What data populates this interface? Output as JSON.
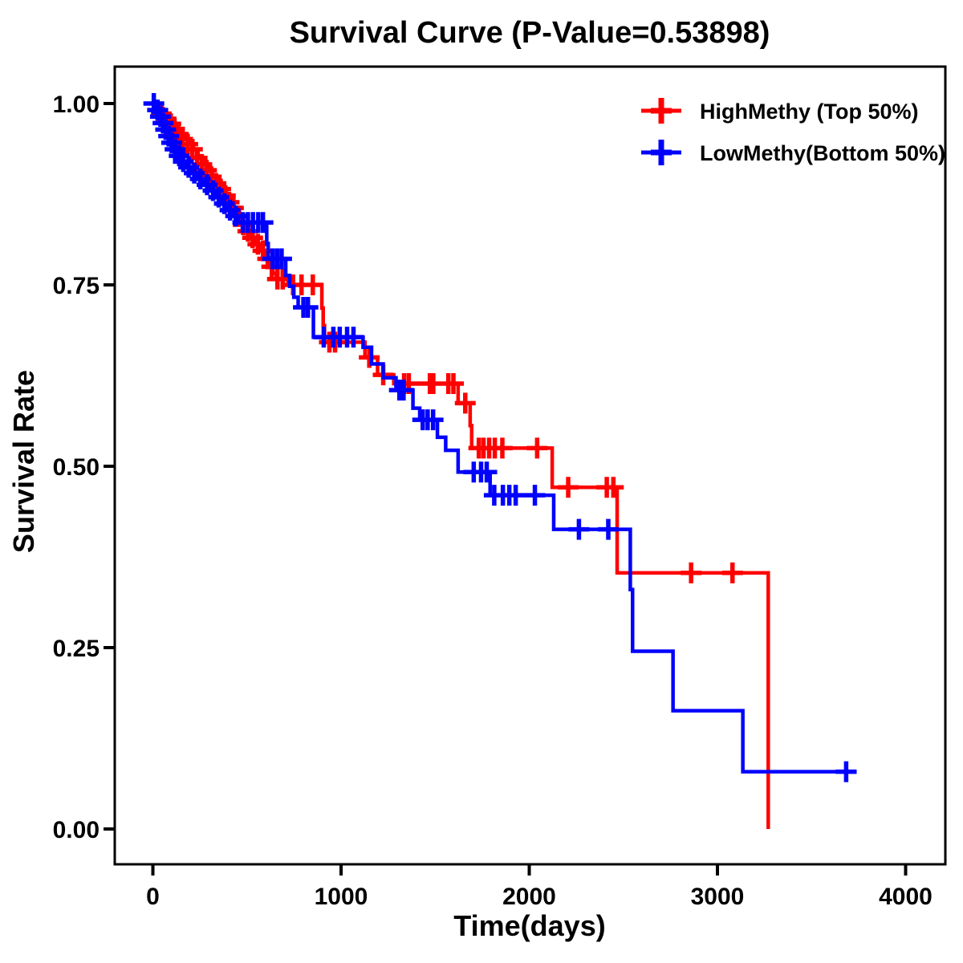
{
  "chart_data": {
    "type": "line",
    "subtype": "kaplan-meier-step-survival",
    "title": "Survival Curve (P-Value=0.53898)",
    "p_value_shown_in_title": "0.53898",
    "xlabel": "Time(days)",
    "ylabel": "Survival Rate",
    "xlim": [
      0,
      4000
    ],
    "ylim": [
      0.0,
      1.0
    ],
    "x_ticks": [
      0,
      1000,
      2000,
      3000,
      4000
    ],
    "x_tick_labels": [
      "0",
      "1000",
      "2000",
      "3000",
      "4000"
    ],
    "y_ticks": [
      0.0,
      0.25,
      0.5,
      0.75,
      1.0
    ],
    "y_tick_labels": [
      "0.00",
      "0.25",
      "0.50",
      "0.75",
      "1.00"
    ],
    "grid": "off",
    "legend_position": "top-right-inside",
    "frame": "full box, black",
    "series": [
      {
        "name": "HighMethy (Top 50%)",
        "color": "#FF0000",
        "steps": [
          [
            0,
            1.0
          ],
          [
            30,
            0.993
          ],
          [
            55,
            0.986
          ],
          [
            80,
            0.979
          ],
          [
            100,
            0.972
          ],
          [
            120,
            0.965
          ],
          [
            140,
            0.958
          ],
          [
            165,
            0.951
          ],
          [
            190,
            0.944
          ],
          [
            215,
            0.937
          ],
          [
            240,
            0.925
          ],
          [
            265,
            0.916
          ],
          [
            290,
            0.908
          ],
          [
            315,
            0.899
          ],
          [
            340,
            0.89
          ],
          [
            365,
            0.882
          ],
          [
            390,
            0.873
          ],
          [
            410,
            0.864
          ],
          [
            432,
            0.856
          ],
          [
            450,
            0.845
          ],
          [
            467,
            0.833
          ],
          [
            490,
            0.824
          ],
          [
            515,
            0.815
          ],
          [
            545,
            0.806
          ],
          [
            575,
            0.797
          ],
          [
            598,
            0.786
          ],
          [
            618,
            0.775
          ],
          [
            638,
            0.766
          ],
          [
            656,
            0.758
          ],
          [
            718,
            0.75
          ],
          [
            898,
            0.718
          ],
          [
            905,
            0.694
          ],
          [
            912,
            0.671
          ],
          [
            1127,
            0.65
          ],
          [
            1194,
            0.626
          ],
          [
            1280,
            0.614
          ],
          [
            1622,
            0.587
          ],
          [
            1686,
            0.556
          ],
          [
            1694,
            0.525
          ],
          [
            2122,
            0.471
          ],
          [
            2467,
            0.353
          ],
          [
            3270,
            0.0
          ]
        ],
        "censors": [
          [
            45,
            0.986
          ],
          [
            70,
            0.979
          ],
          [
            95,
            0.972
          ],
          [
            115,
            0.965
          ],
          [
            135,
            0.958
          ],
          [
            158,
            0.951
          ],
          [
            185,
            0.944
          ],
          [
            210,
            0.937
          ],
          [
            235,
            0.925
          ],
          [
            260,
            0.916
          ],
          [
            285,
            0.908
          ],
          [
            310,
            0.899
          ],
          [
            335,
            0.89
          ],
          [
            360,
            0.882
          ],
          [
            385,
            0.873
          ],
          [
            405,
            0.864
          ],
          [
            428,
            0.856
          ],
          [
            458,
            0.845
          ],
          [
            480,
            0.833
          ],
          [
            505,
            0.824
          ],
          [
            530,
            0.815
          ],
          [
            558,
            0.806
          ],
          [
            585,
            0.797
          ],
          [
            610,
            0.786
          ],
          [
            632,
            0.775
          ],
          [
            662,
            0.758
          ],
          [
            690,
            0.758
          ],
          [
            745,
            0.75
          ],
          [
            790,
            0.75
          ],
          [
            850,
            0.75
          ],
          [
            938,
            0.671
          ],
          [
            968,
            0.671
          ],
          [
            1150,
            0.65
          ],
          [
            1224,
            0.626
          ],
          [
            1335,
            0.614
          ],
          [
            1360,
            0.614
          ],
          [
            1472,
            0.614
          ],
          [
            1490,
            0.614
          ],
          [
            1570,
            0.614
          ],
          [
            1597,
            0.614
          ],
          [
            1660,
            0.587
          ],
          [
            1732,
            0.525
          ],
          [
            1757,
            0.525
          ],
          [
            1787,
            0.525
          ],
          [
            1817,
            0.525
          ],
          [
            1857,
            0.525
          ],
          [
            2042,
            0.525
          ],
          [
            2207,
            0.471
          ],
          [
            2412,
            0.471
          ],
          [
            2447,
            0.471
          ],
          [
            2860,
            0.353
          ],
          [
            3080,
            0.353
          ]
        ]
      },
      {
        "name": "LowMethy(Bottom 50%)",
        "color": "#0000FF",
        "steps": [
          [
            0,
            1.0
          ],
          [
            18,
            0.991
          ],
          [
            32,
            0.982
          ],
          [
            46,
            0.973
          ],
          [
            60,
            0.964
          ],
          [
            74,
            0.955
          ],
          [
            90,
            0.946
          ],
          [
            108,
            0.937
          ],
          [
            128,
            0.928
          ],
          [
            150,
            0.92
          ],
          [
            175,
            0.912
          ],
          [
            205,
            0.904
          ],
          [
            238,
            0.896
          ],
          [
            272,
            0.888
          ],
          [
            305,
            0.88
          ],
          [
            335,
            0.871
          ],
          [
            365,
            0.862
          ],
          [
            395,
            0.853
          ],
          [
            425,
            0.845
          ],
          [
            455,
            0.836
          ],
          [
            605,
            0.807
          ],
          [
            613,
            0.786
          ],
          [
            706,
            0.763
          ],
          [
            727,
            0.748
          ],
          [
            749,
            0.733
          ],
          [
            772,
            0.719
          ],
          [
            853,
            0.678
          ],
          [
            1117,
            0.664
          ],
          [
            1162,
            0.641
          ],
          [
            1224,
            0.622
          ],
          [
            1292,
            0.605
          ],
          [
            1382,
            0.58
          ],
          [
            1418,
            0.564
          ],
          [
            1512,
            0.54
          ],
          [
            1556,
            0.522
          ],
          [
            1622,
            0.492
          ],
          [
            1792,
            0.46
          ],
          [
            2130,
            0.413
          ],
          [
            2537,
            0.33
          ],
          [
            2549,
            0.245
          ],
          [
            2764,
            0.163
          ],
          [
            3135,
            0.079
          ],
          [
            3740,
            0.079
          ]
        ],
        "censors": [
          [
            5,
            1.0
          ],
          [
            25,
            0.991
          ],
          [
            40,
            0.982
          ],
          [
            54,
            0.973
          ],
          [
            68,
            0.964
          ],
          [
            84,
            0.955
          ],
          [
            100,
            0.946
          ],
          [
            118,
            0.937
          ],
          [
            140,
            0.928
          ],
          [
            162,
            0.92
          ],
          [
            190,
            0.912
          ],
          [
            220,
            0.904
          ],
          [
            252,
            0.896
          ],
          [
            288,
            0.888
          ],
          [
            320,
            0.88
          ],
          [
            350,
            0.871
          ],
          [
            380,
            0.862
          ],
          [
            410,
            0.853
          ],
          [
            440,
            0.845
          ],
          [
            478,
            0.836
          ],
          [
            505,
            0.836
          ],
          [
            532,
            0.836
          ],
          [
            560,
            0.836
          ],
          [
            585,
            0.836
          ],
          [
            636,
            0.786
          ],
          [
            660,
            0.786
          ],
          [
            684,
            0.786
          ],
          [
            800,
            0.719
          ],
          [
            824,
            0.719
          ],
          [
            908,
            0.678
          ],
          [
            959,
            0.678
          ],
          [
            993,
            0.678
          ],
          [
            1032,
            0.678
          ],
          [
            1066,
            0.678
          ],
          [
            1310,
            0.605
          ],
          [
            1332,
            0.605
          ],
          [
            1434,
            0.564
          ],
          [
            1460,
            0.564
          ],
          [
            1489,
            0.564
          ],
          [
            1705,
            0.492
          ],
          [
            1744,
            0.492
          ],
          [
            1774,
            0.492
          ],
          [
            1814,
            0.46
          ],
          [
            1860,
            0.46
          ],
          [
            1894,
            0.46
          ],
          [
            1928,
            0.46
          ],
          [
            2030,
            0.46
          ],
          [
            2264,
            0.413
          ],
          [
            2420,
            0.413
          ],
          [
            3684,
            0.079
          ]
        ]
      }
    ],
    "colors": {
      "high_methy": "#FF0000",
      "low_methy": "#0000FF",
      "axis": "#000000",
      "background": "#FFFFFF"
    }
  }
}
